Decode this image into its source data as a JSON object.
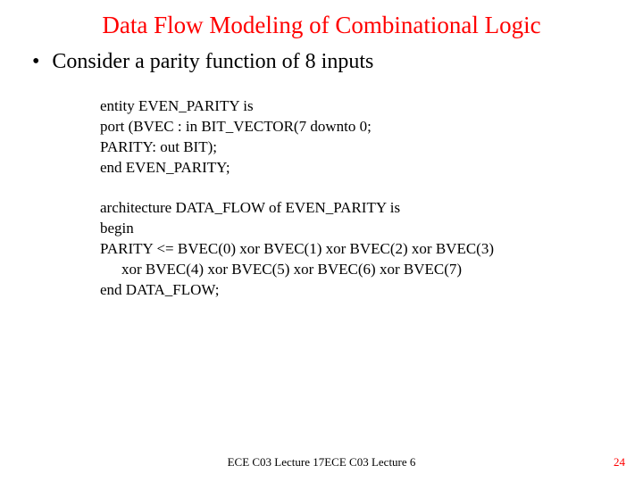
{
  "title": "Data Flow Modeling of Combinational Logic",
  "title_color": "#ff0000",
  "bullet": {
    "marker": "•",
    "text": "Consider a parity function of 8 inputs"
  },
  "entity_block": {
    "line1": "entity EVEN_PARITY is",
    "line2": "port (BVEC : in BIT_VECTOR(7 downto 0;",
    "line3": "PARITY: out BIT);",
    "line4": "end EVEN_PARITY;"
  },
  "arch_block": {
    "line1": "architecture DATA_FLOW of EVEN_PARITY is",
    "line2": "begin",
    "line3": "PARITY <= BVEC(0) xor BVEC(1) xor BVEC(2) xor BVEC(3)",
    "line4": "xor BVEC(4) xor BVEC(5) xor BVEC(6) xor BVEC(7)",
    "line5": "end DATA_FLOW;"
  },
  "footer": {
    "center": "ECE C03 Lecture 17ECE C03 Lecture 6",
    "page": "24",
    "page_color": "#ff0000"
  },
  "background_color": "#ffffff",
  "text_color": "#000000",
  "title_fontsize": 27,
  "body_fontsize": 24,
  "code_fontsize": 17,
  "footer_fontsize": 13
}
